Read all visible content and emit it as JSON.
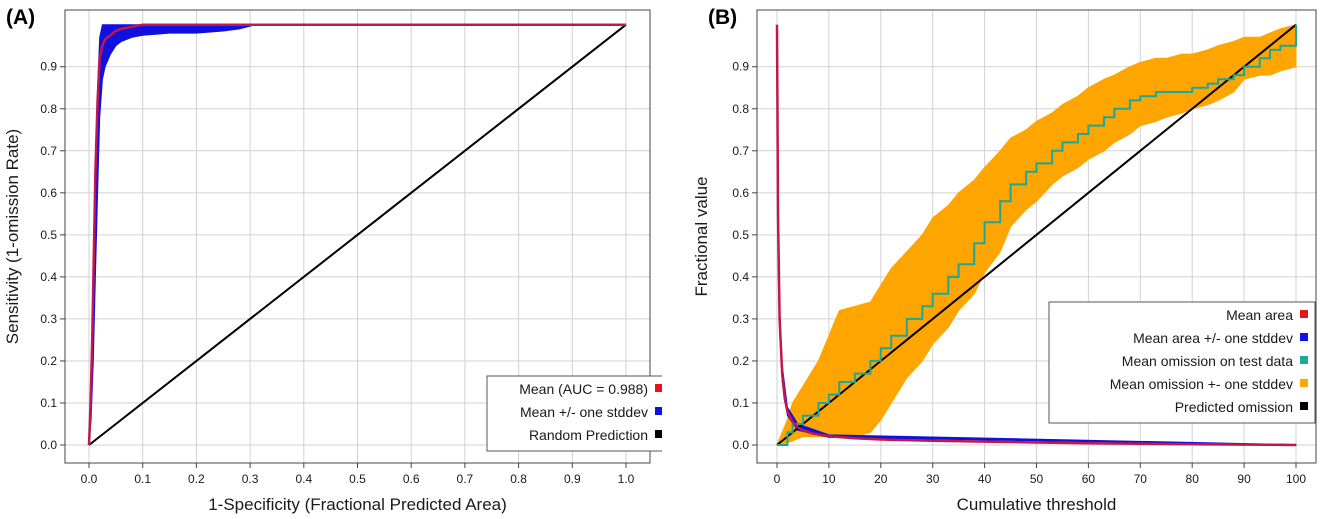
{
  "chart_data": [
    {
      "panel": "(A)",
      "type": "line",
      "xlabel": "1-Specificity (Fractional Predicted Area)",
      "ylabel": "Sensitivity (1-omission Rate)",
      "xlim": [
        0,
        1
      ],
      "ylim": [
        0,
        1
      ],
      "x_ticks": [
        "0.0",
        "0.1",
        "0.2",
        "0.3",
        "0.4",
        "0.5",
        "0.6",
        "0.7",
        "0.8",
        "0.9",
        "1.0"
      ],
      "y_ticks": [
        "0.0",
        "0.1",
        "0.2",
        "0.3",
        "0.4",
        "0.5",
        "0.6",
        "0.7",
        "0.8",
        "0.9"
      ],
      "grid": true,
      "legend_position": "bottom-right",
      "series": [
        {
          "name": "Mean (AUC = 0.988)",
          "color": "#e8141c",
          "kind": "line",
          "x": [
            0,
            0.003,
            0.006,
            0.009,
            0.012,
            0.016,
            0.02,
            0.025,
            0.03,
            0.04,
            0.05,
            0.06,
            0.08,
            0.1,
            0.3,
            0.6,
            1.0
          ],
          "y": [
            0,
            0.1,
            0.25,
            0.45,
            0.65,
            0.82,
            0.92,
            0.95,
            0.965,
            0.975,
            0.985,
            0.99,
            0.995,
            1.0,
            1.0,
            1.0,
            1.0
          ]
        },
        {
          "name": "Mean +/- one stddev",
          "color": "#1010e0",
          "kind": "band",
          "x": [
            0,
            0.004,
            0.008,
            0.012,
            0.016,
            0.02,
            0.025,
            0.03,
            0.04,
            0.05,
            0.06,
            0.08,
            0.1,
            0.15,
            0.2,
            0.25,
            0.28,
            0.31,
            0.4,
            1.0
          ],
          "lower": [
            0,
            0.06,
            0.2,
            0.4,
            0.6,
            0.78,
            0.87,
            0.9,
            0.93,
            0.95,
            0.96,
            0.97,
            0.975,
            0.98,
            0.98,
            0.985,
            0.99,
            1.0,
            1.0,
            1.0
          ],
          "upper": [
            0,
            0.18,
            0.4,
            0.65,
            0.85,
            0.97,
            1.0,
            1.0,
            1.0,
            1.0,
            1.0,
            1.0,
            1.0,
            1.0,
            1.0,
            1.0,
            1.0,
            1.0,
            1.0,
            1.0
          ]
        },
        {
          "name": "Random Prediction",
          "color": "#000000",
          "kind": "line",
          "x": [
            0,
            1
          ],
          "y": [
            0,
            1
          ]
        }
      ]
    },
    {
      "panel": "(B)",
      "type": "line",
      "xlabel": "Cumulative  threshold",
      "ylabel": "Fractional value",
      "xlim": [
        0,
        100
      ],
      "ylim": [
        0,
        1
      ],
      "x_ticks": [
        "0",
        "10",
        "20",
        "30",
        "40",
        "50",
        "60",
        "70",
        "80",
        "90",
        "100"
      ],
      "y_ticks": [
        "0.0",
        "0.1",
        "0.2",
        "0.3",
        "0.4",
        "0.5",
        "0.6",
        "0.7",
        "0.8",
        "0.9"
      ],
      "grid": true,
      "legend_position": "bottom-right",
      "series": [
        {
          "name": "Mean area",
          "color": "#e8141c",
          "kind": "line",
          "x": [
            0,
            0.2,
            0.5,
            1,
            1.5,
            2,
            3,
            4,
            5,
            7,
            10,
            15,
            20,
            30,
            40,
            50,
            60,
            70,
            80,
            90,
            100
          ],
          "y": [
            1.0,
            0.55,
            0.3,
            0.17,
            0.11,
            0.08,
            0.055,
            0.042,
            0.035,
            0.027,
            0.021,
            0.016,
            0.013,
            0.01,
            0.008,
            0.006,
            0.004,
            0.003,
            0.002,
            0.001,
            0.0
          ]
        },
        {
          "name": "Mean area +/- one stddev",
          "color": "#1010e0",
          "kind": "band",
          "x": [
            0,
            0.2,
            0.5,
            1,
            2,
            4,
            10,
            100
          ],
          "lower": [
            0.9,
            0.5,
            0.27,
            0.15,
            0.07,
            0.035,
            0.018,
            0.0
          ],
          "upper": [
            1.0,
            0.6,
            0.33,
            0.19,
            0.09,
            0.05,
            0.024,
            0.001
          ]
        },
        {
          "name": "Mean omission on test data",
          "color": "#1aa89a",
          "kind": "step",
          "x": [
            0,
            2,
            3,
            5,
            8,
            10,
            12,
            15,
            18,
            20,
            22,
            25,
            28,
            30,
            33,
            35,
            38,
            40,
            43,
            45,
            48,
            50,
            53,
            55,
            58,
            60,
            63,
            65,
            68,
            70,
            73,
            75,
            78,
            80,
            83,
            85,
            88,
            90,
            93,
            95,
            97,
            100
          ],
          "y": [
            0,
            0.03,
            0.05,
            0.07,
            0.1,
            0.12,
            0.15,
            0.17,
            0.2,
            0.23,
            0.26,
            0.3,
            0.33,
            0.36,
            0.4,
            0.43,
            0.48,
            0.53,
            0.58,
            0.62,
            0.65,
            0.67,
            0.7,
            0.72,
            0.74,
            0.76,
            0.78,
            0.8,
            0.82,
            0.83,
            0.84,
            0.84,
            0.84,
            0.85,
            0.86,
            0.87,
            0.88,
            0.9,
            0.92,
            0.94,
            0.95,
            1.0
          ]
        },
        {
          "name": "Mean omission +- one stddev",
          "color": "#ffa500",
          "kind": "band",
          "x": [
            0,
            2,
            3,
            5,
            8,
            10,
            12,
            15,
            18,
            20,
            22,
            25,
            28,
            30,
            33,
            35,
            38,
            40,
            43,
            45,
            48,
            50,
            53,
            55,
            58,
            60,
            63,
            65,
            68,
            70,
            73,
            75,
            78,
            80,
            83,
            85,
            88,
            90,
            93,
            95,
            97,
            100
          ],
          "lower": [
            0,
            0.005,
            0.01,
            0.02,
            0.02,
            0.02,
            0.02,
            0.02,
            0.03,
            0.06,
            0.1,
            0.16,
            0.2,
            0.24,
            0.28,
            0.32,
            0.36,
            0.41,
            0.46,
            0.52,
            0.56,
            0.58,
            0.62,
            0.64,
            0.66,
            0.68,
            0.7,
            0.72,
            0.74,
            0.76,
            0.77,
            0.78,
            0.79,
            0.8,
            0.81,
            0.82,
            0.84,
            0.87,
            0.88,
            0.88,
            0.89,
            0.9
          ],
          "upper": [
            0,
            0.06,
            0.1,
            0.14,
            0.2,
            0.26,
            0.32,
            0.33,
            0.34,
            0.38,
            0.42,
            0.46,
            0.5,
            0.54,
            0.57,
            0.6,
            0.63,
            0.66,
            0.7,
            0.73,
            0.75,
            0.77,
            0.79,
            0.81,
            0.83,
            0.85,
            0.87,
            0.88,
            0.9,
            0.91,
            0.92,
            0.92,
            0.93,
            0.93,
            0.94,
            0.95,
            0.96,
            0.97,
            0.97,
            0.98,
            0.99,
            1.0
          ]
        },
        {
          "name": "Predicted omission",
          "color": "#000000",
          "kind": "line",
          "x": [
            0,
            100
          ],
          "y": [
            0,
            1
          ]
        }
      ]
    }
  ]
}
